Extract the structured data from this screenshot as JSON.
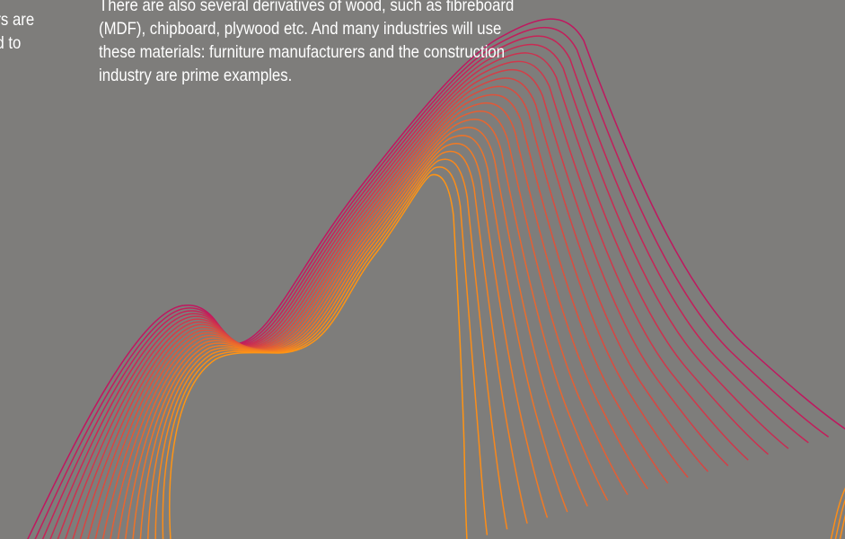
{
  "left_text": {
    "lines": [
      "ers are",
      "ed to"
    ]
  },
  "main_text": {
    "lines": [
      "There are also several derivatives of wood, such as fibreboard",
      "(MDF), chipboard, plywood etc. And many industries will use",
      "these materials: furniture manufacturers and the construction",
      "industry are prime examples."
    ]
  },
  "art": {
    "line_count": 20,
    "color_start": "#c0175f",
    "color_end": "#ff9414"
  }
}
